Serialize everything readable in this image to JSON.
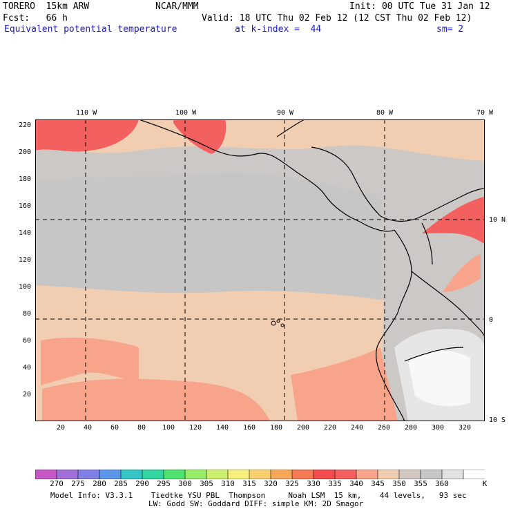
{
  "header": {
    "model": "TORERO  15km ARW",
    "center": "NCAR/MMM",
    "init": "Init: 00 UTC Tue 31 Jan 12",
    "fcst": "Fcst:   66 h",
    "valid": "Valid: 18 UTC Thu 02 Feb 12 (12 CST Thu 02 Feb 12)",
    "field": "Equivalent potential temperature",
    "level": "at k-index =  44",
    "smooth": "sm= 2"
  },
  "map": {
    "lon_labels": [
      "110 W",
      "100 W",
      "90 W",
      "80 W",
      "70 W"
    ],
    "lat_labels": [
      "10 N",
      "0",
      "10 S"
    ],
    "x_ticks": [
      "20",
      "40",
      "60",
      "80",
      "100",
      "120",
      "140",
      "160",
      "180",
      "200",
      "220",
      "240",
      "260",
      "280",
      "300",
      "320"
    ],
    "y_ticks": [
      "220",
      "200",
      "180",
      "160",
      "140",
      "120",
      "100",
      "80",
      "60",
      "40",
      "20"
    ]
  },
  "colorbar": {
    "labels": [
      "270",
      "275",
      "280",
      "285",
      "290",
      "295",
      "300",
      "305",
      "310",
      "315",
      "320",
      "325",
      "330",
      "335",
      "340",
      "345",
      "350",
      "355",
      "360"
    ],
    "unit": "K",
    "colors": [
      "#c756c7",
      "#a070d8",
      "#7f7fe6",
      "#5c96ea",
      "#34c4c4",
      "#32d4a0",
      "#50e270",
      "#98ec68",
      "#cef070",
      "#f8f07a",
      "#f8d070",
      "#f8a858",
      "#f47a56",
      "#f24c4c",
      "#f26060",
      "#f7a48a",
      "#f1cdb1",
      "#d2c8c1",
      "#c6c6c6",
      "#e2e2e2",
      "#ffffff"
    ]
  },
  "footer": {
    "line1": "Model Info: V3.3.1    Tiedtke YSU PBL  Thompson     Noah LSM  15 km,    44 levels,   93 sec",
    "line2": "LW: Godd SW: Goddard DIFF: simple KM: 2D Smagor"
  }
}
